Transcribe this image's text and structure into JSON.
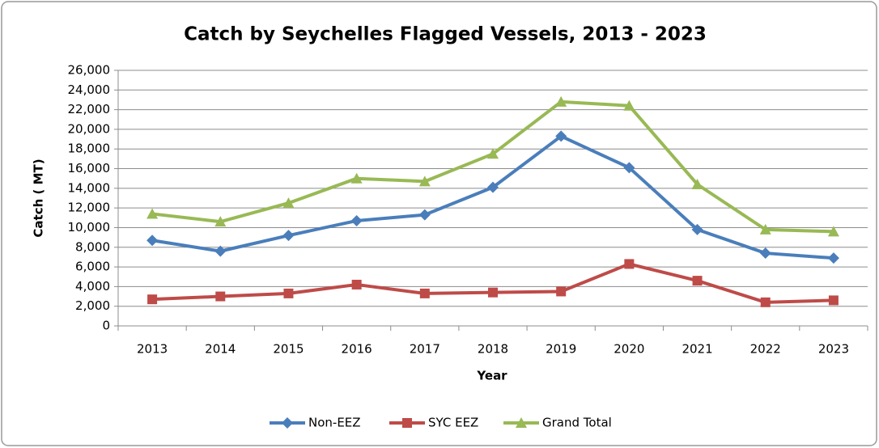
{
  "chart_data": {
    "type": "line",
    "title": "Catch by Seychelles Flagged Vessels, 2013 - 2023",
    "x_label": "Year",
    "y_label": "Catch ( MT)",
    "categories": [
      "2013",
      "2014",
      "2015",
      "2016",
      "2017",
      "2018",
      "2019",
      "2020",
      "2021",
      "2022",
      "2023"
    ],
    "series": [
      {
        "name": "Non-EEZ",
        "color": "#4a7ebb",
        "marker": "diamond",
        "values": [
          8700,
          7600,
          9200,
          10700,
          11300,
          14100,
          19300,
          16100,
          9800,
          7400,
          6900
        ]
      },
      {
        "name": "SYC EEZ",
        "color": "#be4b48",
        "marker": "square",
        "values": [
          2700,
          3000,
          3300,
          4200,
          3300,
          3400,
          3500,
          6300,
          4600,
          2400,
          2600
        ]
      },
      {
        "name": "Grand Total",
        "color": "#98b954",
        "marker": "triangle",
        "values": [
          11400,
          10600,
          12500,
          15000,
          14700,
          17500,
          22800,
          22400,
          14400,
          9800,
          9600
        ]
      }
    ],
    "ylim": [
      0,
      26000
    ],
    "yticks": [
      0,
      {
        "value": 2000,
        "label": "2,000"
      },
      {
        "value": 4000,
        "label": "4,000"
      },
      {
        "value": 6000,
        "label": "6,000"
      },
      {
        "value": 8000,
        "label": "8,000"
      },
      {
        "value": 10000,
        "label": "10,000"
      },
      {
        "value": 12000,
        "label": "12,000"
      },
      {
        "value": 14000,
        "label": "14,000"
      },
      {
        "value": 16000,
        "label": "16,000"
      },
      {
        "value": 18000,
        "label": "18,000"
      },
      {
        "value": 20000,
        "label": "20,000"
      },
      {
        "value": 22000,
        "label": "22,000"
      },
      {
        "value": 24000,
        "label": "24,000"
      },
      {
        "value": 26000,
        "label": "26,000"
      }
    ],
    "grid": true,
    "legend": "bottom"
  }
}
